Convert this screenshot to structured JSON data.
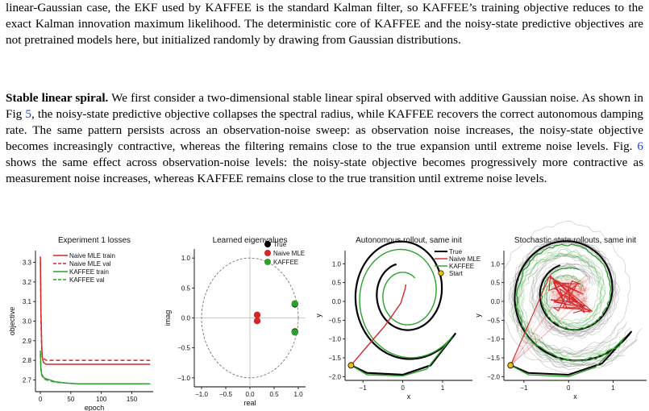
{
  "text": {
    "p1": "linear-Gaussian case, the EKF used by KAFFEE is the standard Kalman filter, so KAFFEE’s training objective reduces to the exact Kalman innovation maximum likelihood. The deterministic core of KAFFEE and the noisy-state predictive objectives are not pretrained models here, but initialized randomly by drawing from Gaussian distributions.",
    "p2_lead": "Stable linear spiral.",
    "p2_a": " We first consider a two-dimensional stable linear spiral observed with additive Gaussian noise. As shown in Fig ",
    "p2_ref1": "5",
    "p2_b": ", the noisy-state predictive objective collapses the spectral radius, while KAFFEE recovers the correct autonomous damping rate. The same pattern persists across an observation-noise sweep: as observation noise increases, the noisy-state objective becomes increasingly contractive, whereas the filtering remains close to the true expansion until extreme noise levels. Fig. ",
    "p2_ref2": "6",
    "p2_c": " shows the same effect across observation-noise levels: the noisy-state objective becomes progressively more contractive as measurement noise increases, whereas KAFFEE remains close to the true transition until extreme noise levels."
  },
  "colors": {
    "red": "#d62728",
    "green": "#2ca02c",
    "black": "#000000",
    "start": "#f2c000"
  },
  "chart_data": [
    {
      "type": "line",
      "title": "Experiment 1 losses",
      "xlabel": "epoch",
      "ylabel": "objective",
      "xlim": [
        -8,
        185
      ],
      "ylim": [
        2.64,
        3.36
      ],
      "xticks": [
        0,
        50,
        100,
        150
      ],
      "yticks": [
        2.7,
        2.8,
        2.9,
        3.0,
        3.1,
        3.2,
        3.3
      ],
      "legend": "top-right",
      "series": [
        {
          "name": "Naive MLE train",
          "color": "red",
          "dash": false,
          "x": [
            0,
            1,
            2,
            3,
            5,
            7,
            10,
            20,
            60,
            120,
            180
          ],
          "y": [
            3.33,
            3.05,
            2.9,
            2.82,
            2.79,
            2.785,
            2.78,
            2.78,
            2.78,
            2.78,
            2.78
          ]
        },
        {
          "name": "Naive MLE val",
          "color": "red",
          "dash": true,
          "x": [
            0,
            1,
            2,
            3,
            5,
            7,
            10,
            20,
            60,
            120,
            180
          ],
          "y": [
            3.3,
            3.0,
            2.87,
            2.82,
            2.81,
            2.805,
            2.8,
            2.8,
            2.8,
            2.8,
            2.8
          ]
        },
        {
          "name": "KAFFEE train",
          "color": "green",
          "dash": false,
          "x": [
            0,
            1,
            2,
            4,
            6,
            10,
            15,
            25,
            40,
            60,
            100,
            180
          ],
          "y": [
            2.85,
            2.76,
            2.73,
            2.72,
            2.71,
            2.705,
            2.7,
            2.69,
            2.685,
            2.68,
            2.68,
            2.68
          ]
        },
        {
          "name": "KAFFEE val",
          "color": "green",
          "dash": true,
          "x": [
            0,
            1,
            2,
            4,
            6,
            10,
            15,
            25,
            40,
            60,
            100,
            180
          ],
          "y": [
            2.83,
            2.75,
            2.725,
            2.715,
            2.705,
            2.7,
            2.695,
            2.688,
            2.684,
            2.68,
            2.68,
            2.68
          ]
        }
      ]
    },
    {
      "type": "scatter",
      "title": "Learned eigenvalues",
      "xlabel": "real",
      "ylabel": "imag",
      "xlim": [
        -1.15,
        1.15
      ],
      "ylim": [
        -1.15,
        1.15
      ],
      "xticks": [
        -1.0,
        -0.5,
        0.0,
        0.5,
        1.0
      ],
      "yticks": [
        -1.0,
        -0.5,
        0.0,
        0.5,
        1.0
      ],
      "unit_circle": true,
      "legend": "top-right",
      "series": [
        {
          "name": "True",
          "color": "black",
          "points": [
            [
              0.93,
              0.23
            ],
            [
              0.93,
              -0.23
            ]
          ]
        },
        {
          "name": "Naive MLE",
          "color": "red",
          "points": [
            [
              0.15,
              0.05
            ],
            [
              0.15,
              -0.05
            ]
          ]
        },
        {
          "name": "KAFFEE",
          "color": "green",
          "points": [
            [
              0.93,
              0.24
            ],
            [
              0.93,
              -0.24
            ]
          ]
        }
      ]
    },
    {
      "type": "line",
      "title": "Autonomous rollout, same init",
      "xlabel": "x",
      "ylabel": "y",
      "xlim": [
        -1.45,
        1.75
      ],
      "ylim": [
        -2.1,
        1.35
      ],
      "xticks": [
        -1,
        0,
        1
      ],
      "yticks": [
        -2.0,
        -1.5,
        -1.0,
        -0.5,
        0.0,
        0.5,
        1.0
      ],
      "legend": "top-right",
      "start": [
        -1.3,
        -1.7
      ],
      "legend_entries": [
        {
          "name": "True",
          "color": "black"
        },
        {
          "name": "Naive MLE",
          "color": "red"
        },
        {
          "name": "KAFFEE",
          "color": "green"
        },
        {
          "name": "Start",
          "color": "start"
        }
      ]
    },
    {
      "type": "line",
      "title": "Stochastic state rollouts, same init",
      "xlabel": "x",
      "ylabel": "y",
      "xlim": [
        -1.45,
        1.75
      ],
      "ylim": [
        -2.1,
        1.35
      ],
      "xticks": [
        -1,
        0,
        1
      ],
      "yticks": [
        -2.0,
        -1.5,
        -1.0,
        -0.5,
        0.0,
        0.5,
        1.0
      ],
      "start": [
        -1.3,
        -1.7
      ]
    }
  ]
}
